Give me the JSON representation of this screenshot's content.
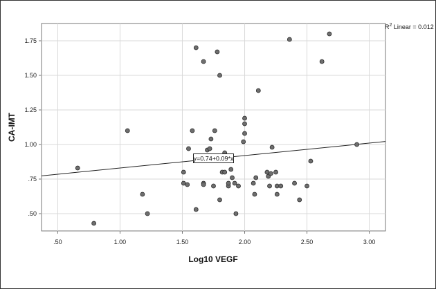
{
  "chart_data": {
    "type": "scatter",
    "xlabel": "Log10 VEGF",
    "ylabel": "CA-IMT",
    "xlim": [
      0.37,
      3.13
    ],
    "ylim": [
      0.375,
      1.875
    ],
    "x_ticks": [
      0.5,
      1.0,
      1.5,
      2.0,
      2.5,
      3.0
    ],
    "x_tick_labels": [
      ".50",
      "1.00",
      "1.50",
      "2.00",
      "2.50",
      "3.00"
    ],
    "y_ticks": [
      0.5,
      0.75,
      1.0,
      1.25,
      1.5,
      1.75
    ],
    "y_tick_labels": [
      ".50",
      ".75",
      "1.00",
      "1.25",
      "1.50",
      "1.75"
    ],
    "grid": true,
    "r2_label": {
      "prefix": "R",
      "sup": "2",
      "suffix": " Linear = 0.012"
    },
    "fit_line": {
      "intercept": 0.74,
      "slope": 0.09,
      "label": "y=0.74+0.09*x"
    },
    "point_color": "#6e6e6e",
    "points": [
      {
        "x": 0.66,
        "y": 0.83
      },
      {
        "x": 0.79,
        "y": 0.43
      },
      {
        "x": 1.06,
        "y": 1.1
      },
      {
        "x": 1.18,
        "y": 0.64
      },
      {
        "x": 1.22,
        "y": 0.5
      },
      {
        "x": 1.51,
        "y": 0.8
      },
      {
        "x": 1.51,
        "y": 0.72
      },
      {
        "x": 1.54,
        "y": 0.71
      },
      {
        "x": 1.55,
        "y": 0.97
      },
      {
        "x": 1.58,
        "y": 1.1
      },
      {
        "x": 1.61,
        "y": 1.7
      },
      {
        "x": 1.61,
        "y": 0.53
      },
      {
        "x": 1.67,
        "y": 1.6
      },
      {
        "x": 1.67,
        "y": 0.72
      },
      {
        "x": 1.67,
        "y": 0.71
      },
      {
        "x": 1.7,
        "y": 0.96
      },
      {
        "x": 1.72,
        "y": 0.97
      },
      {
        "x": 1.73,
        "y": 1.04
      },
      {
        "x": 1.75,
        "y": 0.7
      },
      {
        "x": 1.76,
        "y": 1.1
      },
      {
        "x": 1.78,
        "y": 1.67
      },
      {
        "x": 1.8,
        "y": 1.5
      },
      {
        "x": 1.8,
        "y": 0.6
      },
      {
        "x": 1.82,
        "y": 0.8
      },
      {
        "x": 1.84,
        "y": 0.94
      },
      {
        "x": 1.84,
        "y": 0.8
      },
      {
        "x": 1.87,
        "y": 0.7
      },
      {
        "x": 1.87,
        "y": 0.72
      },
      {
        "x": 1.89,
        "y": 0.82
      },
      {
        "x": 1.9,
        "y": 0.76
      },
      {
        "x": 1.92,
        "y": 0.72
      },
      {
        "x": 1.93,
        "y": 0.5
      },
      {
        "x": 1.95,
        "y": 0.7
      },
      {
        "x": 1.99,
        "y": 1.02
      },
      {
        "x": 2.0,
        "y": 1.08
      },
      {
        "x": 2.0,
        "y": 1.15
      },
      {
        "x": 2.0,
        "y": 1.19
      },
      {
        "x": 2.07,
        "y": 0.72
      },
      {
        "x": 2.08,
        "y": 0.64
      },
      {
        "x": 2.09,
        "y": 0.76
      },
      {
        "x": 2.11,
        "y": 1.39
      },
      {
        "x": 2.18,
        "y": 0.8
      },
      {
        "x": 2.19,
        "y": 0.77
      },
      {
        "x": 2.2,
        "y": 0.7
      },
      {
        "x": 2.21,
        "y": 0.79
      },
      {
        "x": 2.22,
        "y": 0.98
      },
      {
        "x": 2.25,
        "y": 0.8
      },
      {
        "x": 2.26,
        "y": 0.7
      },
      {
        "x": 2.26,
        "y": 0.64
      },
      {
        "x": 2.29,
        "y": 0.7
      },
      {
        "x": 2.36,
        "y": 1.76
      },
      {
        "x": 2.4,
        "y": 0.72
      },
      {
        "x": 2.44,
        "y": 0.6
      },
      {
        "x": 2.5,
        "y": 0.7
      },
      {
        "x": 2.53,
        "y": 0.88
      },
      {
        "x": 2.62,
        "y": 1.6
      },
      {
        "x": 2.68,
        "y": 1.8
      },
      {
        "x": 2.9,
        "y": 1.0
      }
    ]
  }
}
